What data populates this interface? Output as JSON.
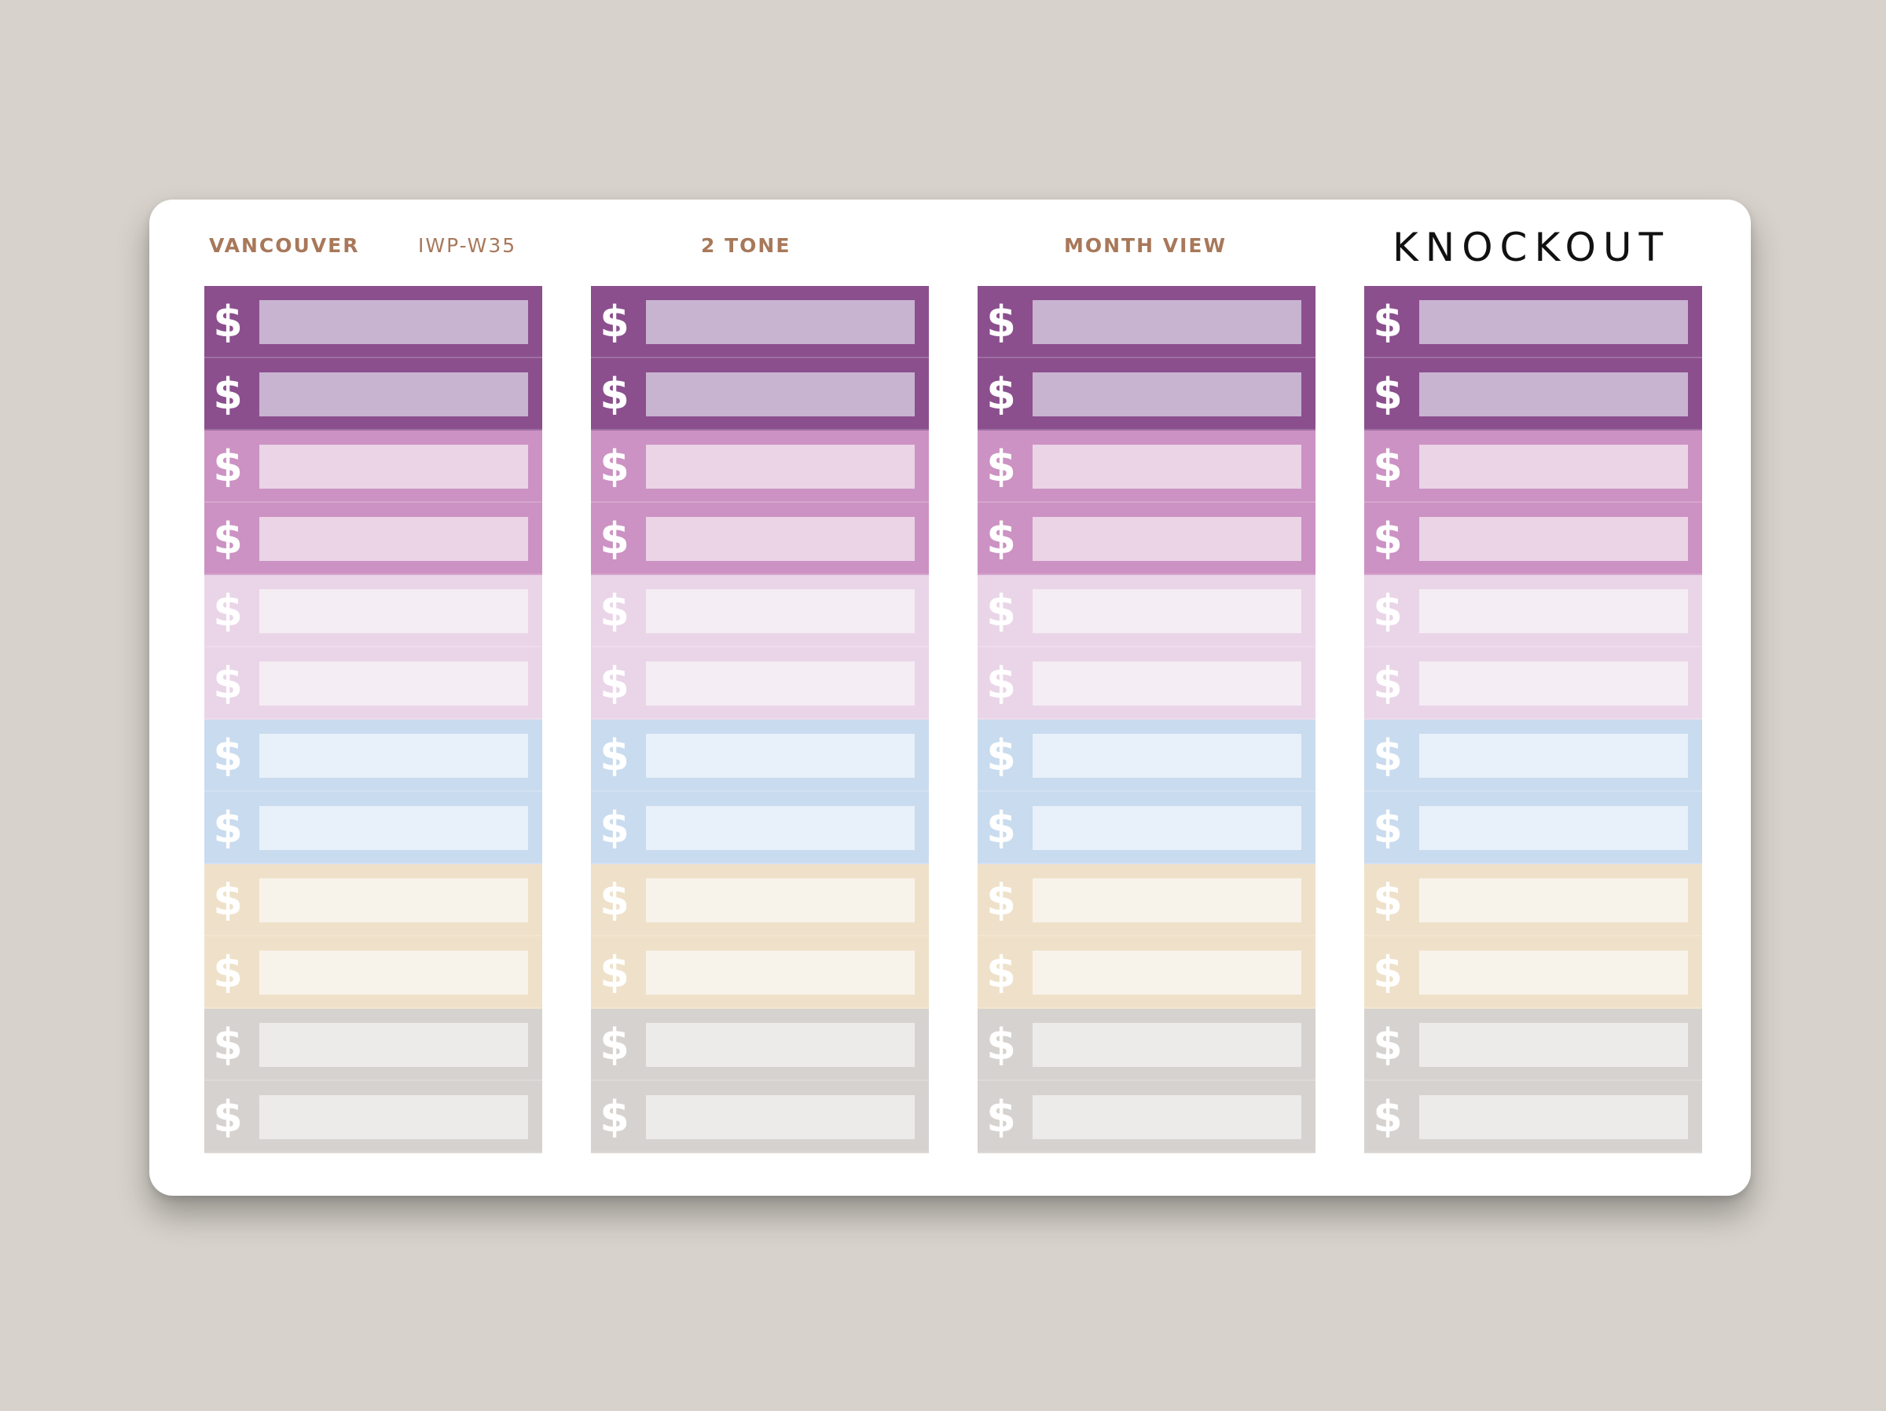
{
  "sheet": {
    "header_1": "VANCOUVER",
    "code": "IWP-W35",
    "header_2": "2 TONE",
    "header_3": "MONTH VIEW",
    "brand": "KNOCKOUT"
  },
  "sticker": {
    "symbol": "$"
  },
  "columns": 4,
  "rows": [
    {
      "tone": "#8b4f8e",
      "field": "#c8b3d0"
    },
    {
      "tone": "#8b4f8e",
      "field": "#c8b3d0"
    },
    {
      "tone": "#cc92c3",
      "field": "#ead4e6"
    },
    {
      "tone": "#cc92c3",
      "field": "#ead4e6"
    },
    {
      "tone": "#ead5e8",
      "field": "#f4edf3"
    },
    {
      "tone": "#ead5e8",
      "field": "#f4edf3"
    },
    {
      "tone": "#c9dbee",
      "field": "#e8f0f9"
    },
    {
      "tone": "#c9dbee",
      "field": "#e8f0f9"
    },
    {
      "tone": "#efe1c9",
      "field": "#f8f3ea"
    },
    {
      "tone": "#efe1c9",
      "field": "#f8f3ea"
    },
    {
      "tone": "#d6d2cf",
      "field": "#edebea"
    },
    {
      "tone": "#d6d2cf",
      "field": "#edebea"
    }
  ]
}
